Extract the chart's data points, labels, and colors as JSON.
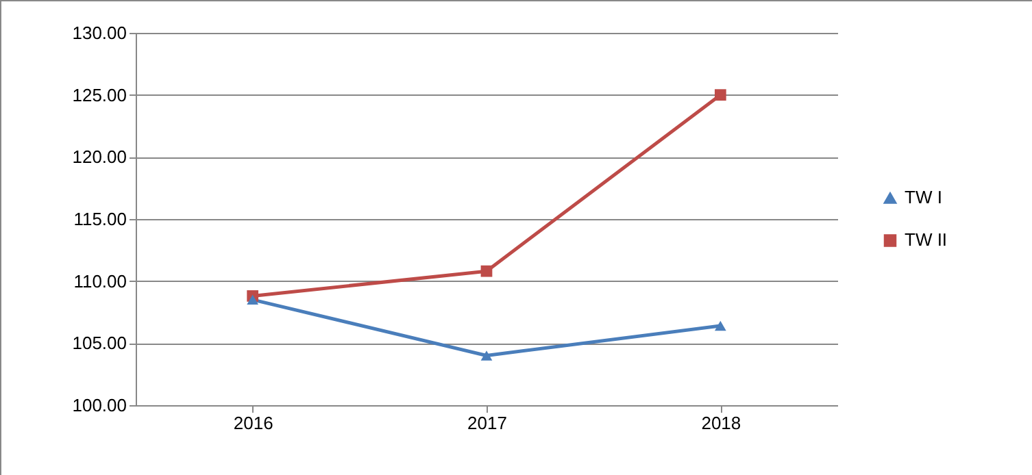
{
  "chart_data": {
    "type": "line",
    "categories": [
      "2016",
      "2017",
      "2018"
    ],
    "series": [
      {
        "name": "TW I",
        "color": "#4a7ebb",
        "marker": "triangle",
        "values": [
          108.5,
          104.0,
          106.4
        ]
      },
      {
        "name": "TW II",
        "color": "#be4b48",
        "marker": "square",
        "values": [
          108.8,
          110.8,
          125.0
        ]
      }
    ],
    "ylim": [
      100,
      130
    ],
    "yticks": [
      {
        "value": 100,
        "label": "100.00"
      },
      {
        "value": 105,
        "label": "105.00"
      },
      {
        "value": 110,
        "label": "110.00"
      },
      {
        "value": 115,
        "label": "115.00"
      },
      {
        "value": 120,
        "label": "120.00"
      },
      {
        "value": 125,
        "label": "125.00"
      },
      {
        "value": 130,
        "label": "130.00"
      }
    ],
    "grid": "y",
    "legend": "right",
    "line_style": "solid"
  }
}
